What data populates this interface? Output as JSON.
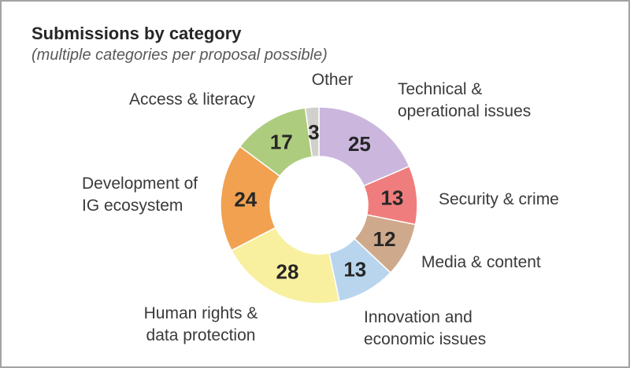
{
  "header": {
    "title": "Submissions by category",
    "subtitle": "(multiple categories per proposal possible)"
  },
  "chart_data": {
    "type": "pie",
    "variant": "donut",
    "title": "Submissions by category",
    "subtitle": "(multiple categories per proposal possible)",
    "start_angle_deg": 0,
    "direction": "clockwise",
    "total": 135,
    "hole_ratio": 0.5,
    "labels_position": "outside",
    "value_labels_position": "inside",
    "segments": [
      {
        "id": "technical",
        "label": "Technical &\noperational issues",
        "value": 25,
        "color": "#cbb7de"
      },
      {
        "id": "security",
        "label": "Security & crime",
        "value": 13,
        "color": "#ef7d7d"
      },
      {
        "id": "media",
        "label": "Media & content",
        "value": 12,
        "color": "#cfa98c"
      },
      {
        "id": "innovation",
        "label": "Innovation and\neconomic issues",
        "value": 13,
        "color": "#b9d5ee"
      },
      {
        "id": "human-rights",
        "label": "Human rights &\ndata protection",
        "value": 28,
        "color": "#f8f09f"
      },
      {
        "id": "development",
        "label": "Development of\nIG ecosystem",
        "value": 24,
        "color": "#f1a14f"
      },
      {
        "id": "access",
        "label": "Access & literacy",
        "value": 17,
        "color": "#aecc7e"
      },
      {
        "id": "other",
        "label": "Other",
        "value": 3,
        "color": "#d2d0cc"
      }
    ]
  }
}
